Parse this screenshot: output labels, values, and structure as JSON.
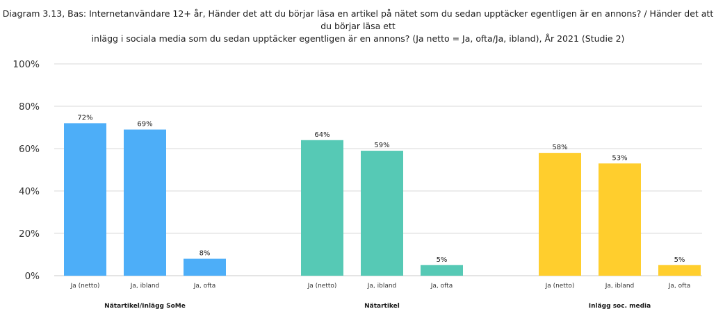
{
  "chart_data": {
    "type": "bar",
    "title_lines": [
      "Diagram 3.13, Bas: Internetanvändare 12+ år, Händer det att du börjar läsa en artikel på nätet som du sedan upptäcker egentligen är en annons? / Händer det att du börjar läsa ett",
      "inlägg i sociala media som du sedan upptäcker egentligen är en annons? (Ja netto = Ja, ofta/Ja, ibland), År 2021 (Studie 2)"
    ],
    "y_ticks": [
      "0%",
      "20%",
      "40%",
      "60%",
      "80%",
      "100%"
    ],
    "ylim": [
      0,
      100
    ],
    "grid": true,
    "groups": [
      {
        "name": "Nätartikel/Inlägg SoMe",
        "color": "#4DAEF8",
        "categories": [
          "Ja (netto)",
          "Ja, ibland",
          "Ja, ofta"
        ],
        "values": [
          72,
          69,
          8
        ],
        "value_labels": [
          "72%",
          "69%",
          "8%"
        ]
      },
      {
        "name": "Nätartikel",
        "color": "#56C9B5",
        "categories": [
          "Ja (netto)",
          "Ja, ibland",
          "Ja, ofta"
        ],
        "values": [
          64,
          59,
          5
        ],
        "value_labels": [
          "64%",
          "59%",
          "5%"
        ]
      },
      {
        "name": "Inlägg soc. media",
        "color": "#FFCE2D",
        "categories": [
          "Ja (netto)",
          "Ja, ibland",
          "Ja, ofta"
        ],
        "values": [
          58,
          53,
          5
        ],
        "value_labels": [
          "58%",
          "53%",
          "5%"
        ]
      }
    ]
  }
}
